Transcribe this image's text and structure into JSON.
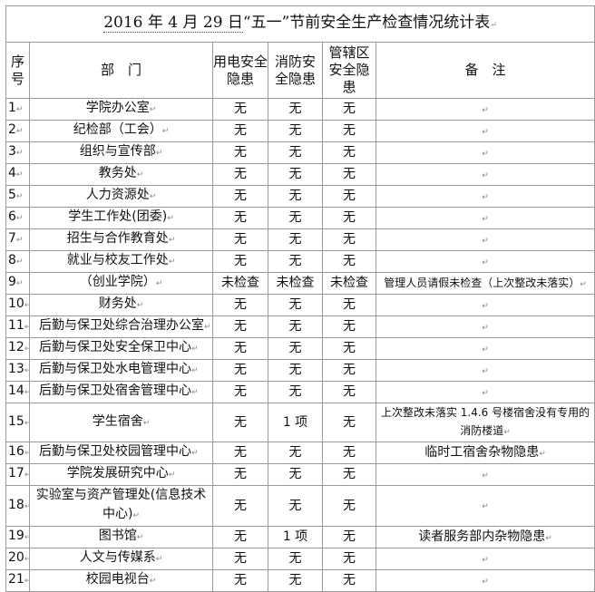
{
  "title_prefix": "2016 年 4 月 29 日",
  "title_rest": "“五一”节前安全生产检查情况统计表",
  "headers": {
    "no": "序号",
    "dept": "部　门",
    "elec": "用电安全隐患",
    "fire": "消防安全隐患",
    "area": "管辖区安全隐患",
    "note": "备　注"
  },
  "rows": [
    {
      "no": "1",
      "dept": "学院办公室",
      "elec": "无",
      "fire": "无",
      "area": "无",
      "note": ""
    },
    {
      "no": "2",
      "dept": "纪检部（工会）",
      "elec": "无",
      "fire": "无",
      "area": "无",
      "note": ""
    },
    {
      "no": "3",
      "dept": "组织与宣传部",
      "elec": "无",
      "fire": "无",
      "area": "无",
      "note": ""
    },
    {
      "no": "4",
      "dept": "教务处",
      "elec": "无",
      "fire": "无",
      "area": "无",
      "note": ""
    },
    {
      "no": "5",
      "dept": "人力资源处",
      "elec": "无",
      "fire": "无",
      "area": "无",
      "note": ""
    },
    {
      "no": "6",
      "dept": "学生工作处(团委)",
      "elec": "无",
      "fire": "无",
      "area": "无",
      "note": ""
    },
    {
      "no": "7",
      "dept": "招生与合作教育处",
      "elec": "无",
      "fire": "无",
      "area": "无",
      "note": ""
    },
    {
      "no": "8",
      "dept": "就业与校友工作处",
      "elec": "无",
      "fire": "无",
      "area": "无",
      "note": ""
    },
    {
      "no": "9",
      "dept": "（创业学院）",
      "elec": "未检查",
      "fire": "未检查",
      "area": "未检查",
      "note": "管理人员请假未检查（上次整改未落实）"
    },
    {
      "no": "10",
      "dept": "财务处",
      "elec": "无",
      "fire": "无",
      "area": "无",
      "note": ""
    },
    {
      "no": "11",
      "dept": "后勤与保卫处综合治理办公室",
      "elec": "无",
      "fire": "无",
      "area": "无",
      "note": ""
    },
    {
      "no": "12",
      "dept": "后勤与保卫处安全保卫中心",
      "elec": "无",
      "fire": "无",
      "area": "无",
      "note": ""
    },
    {
      "no": "13",
      "dept": "后勤与保卫处水电管理中心",
      "elec": "无",
      "fire": "无",
      "area": "无",
      "note": ""
    },
    {
      "no": "14",
      "dept": "后勤与保卫处宿舍管理中心",
      "elec": "无",
      "fire": "无",
      "area": "无",
      "note": ""
    },
    {
      "no": "15",
      "dept": "学生宿舍",
      "elec": "无",
      "fire": "1 项",
      "area": "无",
      "note": "上次整改未落实 1.4.6 号楼宿舍没有专用的消防楼道"
    },
    {
      "no": "16",
      "dept": "后勤与保卫处校园管理中心",
      "elec": "无",
      "fire": "无",
      "area": "无",
      "note": "临时工宿舍杂物隐患"
    },
    {
      "no": "17",
      "dept": "学院发展研究中心",
      "elec": "无",
      "fire": "无",
      "area": "无",
      "note": ""
    },
    {
      "no": "18",
      "dept": "实验室与资产管理处(信息技术中心)",
      "elec": "无",
      "fire": "无",
      "area": "无",
      "note": ""
    },
    {
      "no": "19",
      "dept": "图书馆",
      "elec": "无",
      "fire": "1 项",
      "area": "无",
      "note": "读者服务部内杂物隐患"
    },
    {
      "no": "20",
      "dept": "人文与传媒系",
      "elec": "无",
      "fire": "无",
      "area": "无",
      "note": ""
    },
    {
      "no": "21",
      "dept": "校园电视台",
      "elec": "无",
      "fire": "无",
      "area": "无",
      "note": ""
    }
  ]
}
